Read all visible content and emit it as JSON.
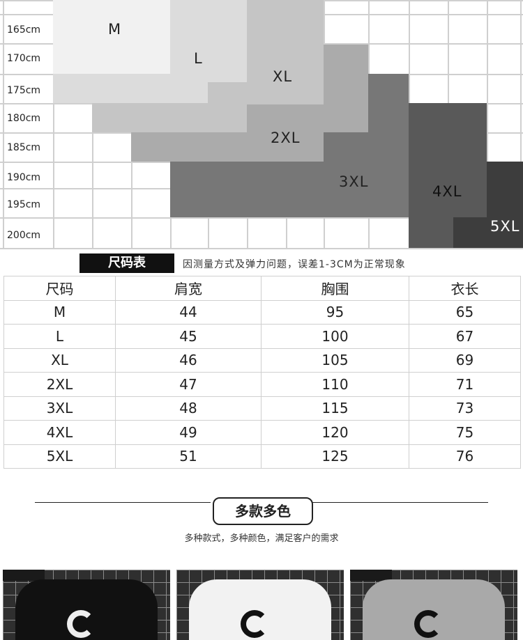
{
  "size_chart": {
    "height_labels": [
      "165cm",
      "170cm",
      "175cm",
      "180cm",
      "185cm",
      "190cm",
      "195cm",
      "200cm"
    ],
    "sizes": [
      "M",
      "L",
      "XL",
      "2XL",
      "3XL",
      "4XL",
      "5XL"
    ]
  },
  "table_title": "尺码表",
  "table_note": "因测量方式及弹力问题，误差1-3CM为正常现象",
  "table": {
    "headers": [
      "尺码",
      "肩宽",
      "胸围",
      "衣长"
    ],
    "rows": [
      [
        "M",
        "44",
        "95",
        "65"
      ],
      [
        "L",
        "45",
        "100",
        "67"
      ],
      [
        "XL",
        "46",
        "105",
        "69"
      ],
      [
        "2XL",
        "47",
        "110",
        "71"
      ],
      [
        "3XL",
        "48",
        "115",
        "73"
      ],
      [
        "4XL",
        "49",
        "120",
        "75"
      ],
      [
        "5XL",
        "51",
        "125",
        "76"
      ]
    ]
  },
  "variety": {
    "title": "多款多色",
    "subtitle": "多种款式，多种颜色，满足客户的需求"
  },
  "products": [
    {
      "name": "black-tshirt",
      "color": "#111111"
    },
    {
      "name": "white-tshirt",
      "color": "#f2f2f2"
    },
    {
      "name": "grey-tshirt",
      "color": "#a9a9a9"
    }
  ]
}
